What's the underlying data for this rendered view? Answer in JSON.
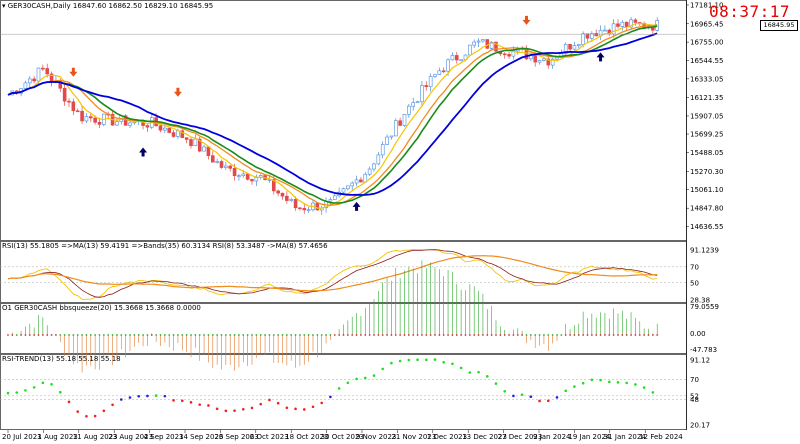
{
  "header": {
    "symbol_line": "GER30CASH,Daily  16847.60 16862.50 16829.10 16845.95",
    "clock": "08:37:17",
    "current_price": "16845.95"
  },
  "price_axis": [
    "17181.10",
    "16965.45",
    "16755.00",
    "16544.55",
    "16333.05",
    "16121.35",
    "15907.05",
    "15699.25",
    "15488.05",
    "15270.30",
    "15061.10",
    "14847.80",
    "14636.55"
  ],
  "rsi_panel": {
    "label": "RSI(13) 55.1805  =>MA(13) 59.4191  =>Bands(35) 60.3134  RSI(8) 53.3487  ->MA(8) 57.4656",
    "axis": [
      "91.1239",
      "70",
      "50",
      "28.38"
    ]
  },
  "squeeze_panel": {
    "label": "O1 GER30CASH bbsqueeze(20) 15.3668 15.3668 0.0000",
    "axis": [
      "79.0559",
      "0.00",
      "-47.783"
    ]
  },
  "trend_panel": {
    "label": "RSI-TREND(13) 55.18 55.18 55.18",
    "axis": [
      "91.12",
      "70",
      "52",
      "48",
      "20.17"
    ]
  },
  "date_axis": [
    "20 Jul 2023",
    "1 Aug 2023",
    "11 Aug 2023",
    "23 Aug 2023",
    "4 Sep 2023",
    "14 Sep 2023",
    "26 Sep 2023",
    "6 Oct 2023",
    "18 Oct 2023",
    "30 Oct 2023",
    "9 Nov 2023",
    "21 Nov 2023",
    "1 Dec 2023",
    "13 Dec 2023",
    "27 Dec 2023",
    "9 Jan 2024",
    "19 Jan 2024",
    "31 Jan 2024",
    "12 Feb 2024"
  ],
  "colors": {
    "bull": "#4a8be0",
    "bear": "#e04a4a",
    "fast_ma": "#1a8a1a",
    "slow_ma": "#0000dd",
    "orange_ma": "#f08c1e",
    "yellow_ma": "#f5c400",
    "arrow_up": "#000066",
    "arrow_down": "#e8531a",
    "clock": "#e60000"
  },
  "chart_data": {
    "type": "line",
    "title": "GER30CASH,Daily",
    "x_labels": [
      "20 Jul 2023",
      "1 Aug 2023",
      "11 Aug 2023",
      "23 Aug 2023",
      "4 Sep 2023",
      "14 Sep 2023",
      "26 Sep 2023",
      "6 Oct 2023",
      "18 Oct 2023",
      "30 Oct 2023",
      "9 Nov 2023",
      "21 Nov 2023",
      "1 Dec 2023",
      "13 Dec 2023",
      "27 Dec 2023",
      "9 Jan 2024",
      "19 Jan 2024",
      "31 Jan 2024",
      "12 Feb 2024"
    ],
    "close_by_label": [
      16150,
      16450,
      15900,
      15850,
      15820,
      15650,
      15300,
      15200,
      14850,
      14900,
      15300,
      15950,
      16450,
      16750,
      16650,
      16550,
      16850,
      16950,
      16950
    ],
    "ylim": [
      14540,
      17181.1
    ]
  }
}
